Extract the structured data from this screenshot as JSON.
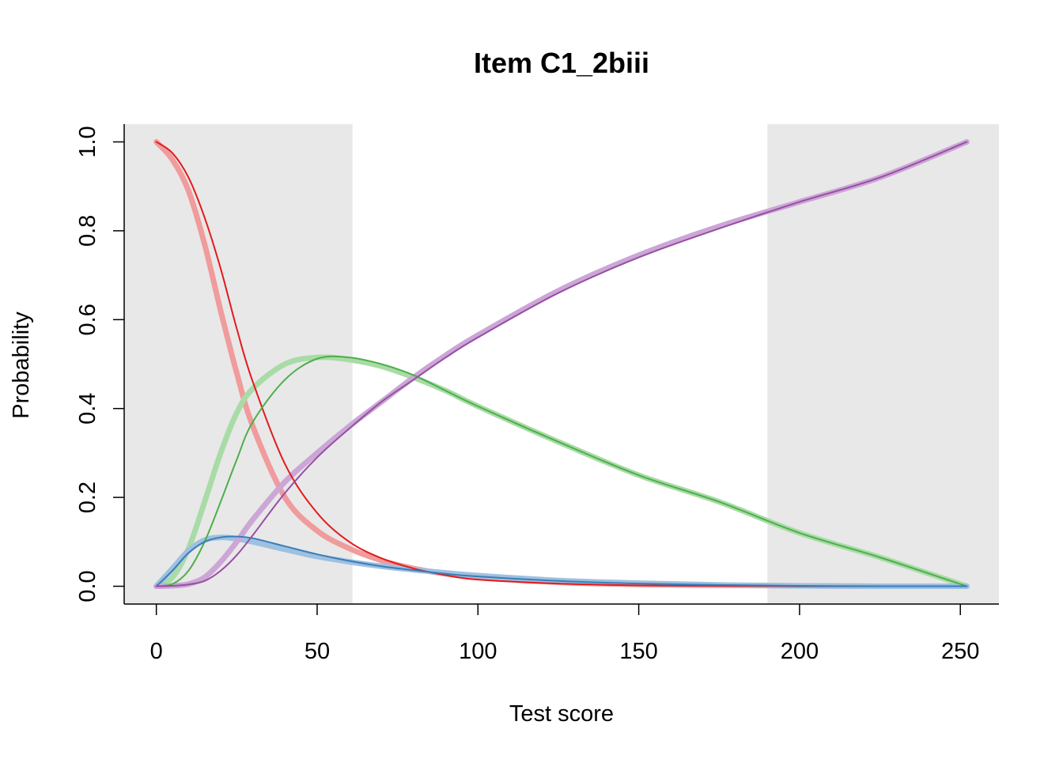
{
  "chart_data": {
    "type": "line",
    "title": "Item C1_2biii",
    "xlabel": "Test score",
    "ylabel": "Probability",
    "xlim": [
      -10,
      262
    ],
    "ylim": [
      -0.04,
      1.04
    ],
    "xticks": [
      0,
      50,
      100,
      150,
      200,
      250
    ],
    "yticks": [
      0.0,
      0.2,
      0.4,
      0.6,
      0.8,
      1.0
    ],
    "xtick_labels": [
      "0",
      "50",
      "100",
      "150",
      "200",
      "250"
    ],
    "ytick_labels": [
      "0.0",
      "0.2",
      "0.4",
      "0.6",
      "0.8",
      "1.0"
    ],
    "shaded_regions": [
      {
        "x_start": -10,
        "x_end": 61,
        "color": "#e8e8e8"
      },
      {
        "x_start": 190,
        "x_end": 262,
        "color": "#e8e8e8"
      }
    ],
    "grid": false,
    "legend": "none",
    "x": [
      0,
      5,
      10,
      15,
      20,
      25,
      30,
      40,
      50,
      60,
      70,
      80,
      90,
      100,
      125,
      150,
      175,
      200,
      225,
      252
    ],
    "series": [
      {
        "color": "#e41a1c",
        "style": "thin",
        "values": [
          1.0,
          0.975,
          0.92,
          0.83,
          0.715,
          0.58,
          0.46,
          0.275,
          0.165,
          0.1,
          0.063,
          0.04,
          0.025,
          0.015,
          0.006,
          0.002,
          0.001,
          0.0,
          0.0,
          0.0
        ]
      },
      {
        "color": "#f09b9c",
        "style": "thick",
        "values": [
          1.0,
          0.96,
          0.89,
          0.77,
          0.62,
          0.48,
          0.36,
          0.2,
          0.125,
          0.085,
          0.058,
          0.04,
          0.028,
          0.02,
          0.009,
          0.004,
          0.002,
          0.001,
          0.0,
          0.0
        ]
      },
      {
        "color": "#4daf4a",
        "style": "thin",
        "values": [
          0.0,
          0.005,
          0.035,
          0.1,
          0.19,
          0.285,
          0.37,
          0.465,
          0.512,
          0.515,
          0.5,
          0.475,
          0.44,
          0.405,
          0.325,
          0.25,
          0.19,
          0.12,
          0.065,
          0.0
        ]
      },
      {
        "color": "#a9dba7",
        "style": "thick",
        "values": [
          0.0,
          0.02,
          0.085,
          0.19,
          0.3,
          0.39,
          0.445,
          0.5,
          0.515,
          0.51,
          0.495,
          0.47,
          0.44,
          0.405,
          0.325,
          0.25,
          0.19,
          0.12,
          0.065,
          0.0
        ]
      },
      {
        "color": "#377eb8",
        "style": "thin",
        "values": [
          0.0,
          0.035,
          0.075,
          0.1,
          0.11,
          0.112,
          0.108,
          0.09,
          0.072,
          0.057,
          0.045,
          0.036,
          0.028,
          0.022,
          0.012,
          0.006,
          0.003,
          0.001,
          0.0,
          0.0
        ]
      },
      {
        "color": "#9fc0e0",
        "style": "thick",
        "values": [
          0.0,
          0.04,
          0.08,
          0.104,
          0.11,
          0.107,
          0.1,
          0.083,
          0.067,
          0.055,
          0.045,
          0.037,
          0.03,
          0.024,
          0.013,
          0.007,
          0.003,
          0.001,
          0.0,
          0.0
        ]
      },
      {
        "color": "#984ea3",
        "style": "thin",
        "values": [
          0.0,
          0.001,
          0.004,
          0.012,
          0.035,
          0.07,
          0.115,
          0.21,
          0.29,
          0.355,
          0.415,
          0.465,
          0.515,
          0.56,
          0.66,
          0.74,
          0.805,
          0.865,
          0.92,
          1.0
        ]
      },
      {
        "color": "#cba6d6",
        "style": "thick",
        "values": [
          0.0,
          0.001,
          0.005,
          0.02,
          0.055,
          0.1,
          0.15,
          0.235,
          0.3,
          0.36,
          0.415,
          0.47,
          0.52,
          0.565,
          0.665,
          0.745,
          0.81,
          0.865,
          0.92,
          1.0
        ]
      }
    ]
  }
}
